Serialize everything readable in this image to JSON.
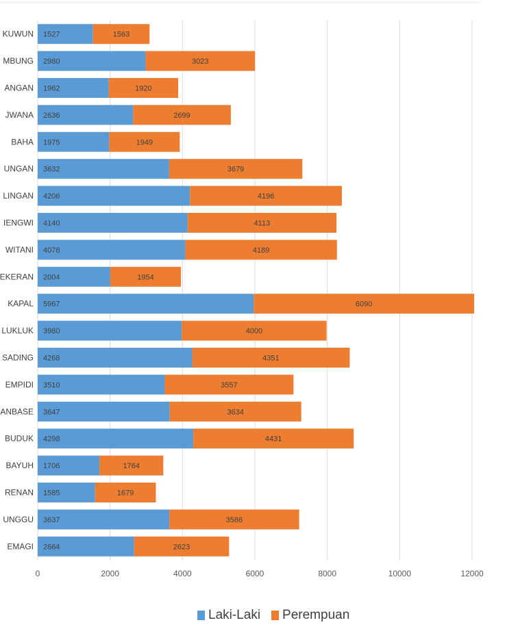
{
  "chart_data": {
    "type": "bar",
    "orientation": "horizontal",
    "stacked": true,
    "categories": [
      "KUWUN",
      "MBUNG",
      "ANGAN",
      "JWANA",
      "BAHA",
      "UNGAN",
      "LINGAN",
      "IENGWI",
      "WITANI",
      "EKERAN",
      "KAPAL",
      "LUKLUK",
      "SADING",
      "EMPIDI",
      "ANBASE",
      "BUDUK",
      "BAYUH",
      "RENAN",
      "UNGGU",
      "EMAGI"
    ],
    "series": [
      {
        "name": "Laki-Laki",
        "color": "#5b9bd5",
        "values": [
          1527,
          2980,
          1962,
          2636,
          1975,
          3632,
          4206,
          4140,
          4078,
          2004,
          5967,
          3980,
          4268,
          3510,
          3647,
          4298,
          1706,
          1585,
          3637,
          2664
        ]
      },
      {
        "name": "Perempuan",
        "color": "#ed7d31",
        "values": [
          1563,
          3023,
          1920,
          2699,
          1949,
          3679,
          4196,
          4113,
          4189,
          1954,
          6090,
          4000,
          4351,
          3557,
          3634,
          4431,
          1764,
          1679,
          3586,
          2623
        ]
      }
    ],
    "xlim": [
      0,
      12000
    ],
    "xticks": [
      0,
      2000,
      4000,
      6000,
      8000,
      10000,
      12000
    ],
    "grid": true,
    "legend": "bottom",
    "data_labels": true
  }
}
